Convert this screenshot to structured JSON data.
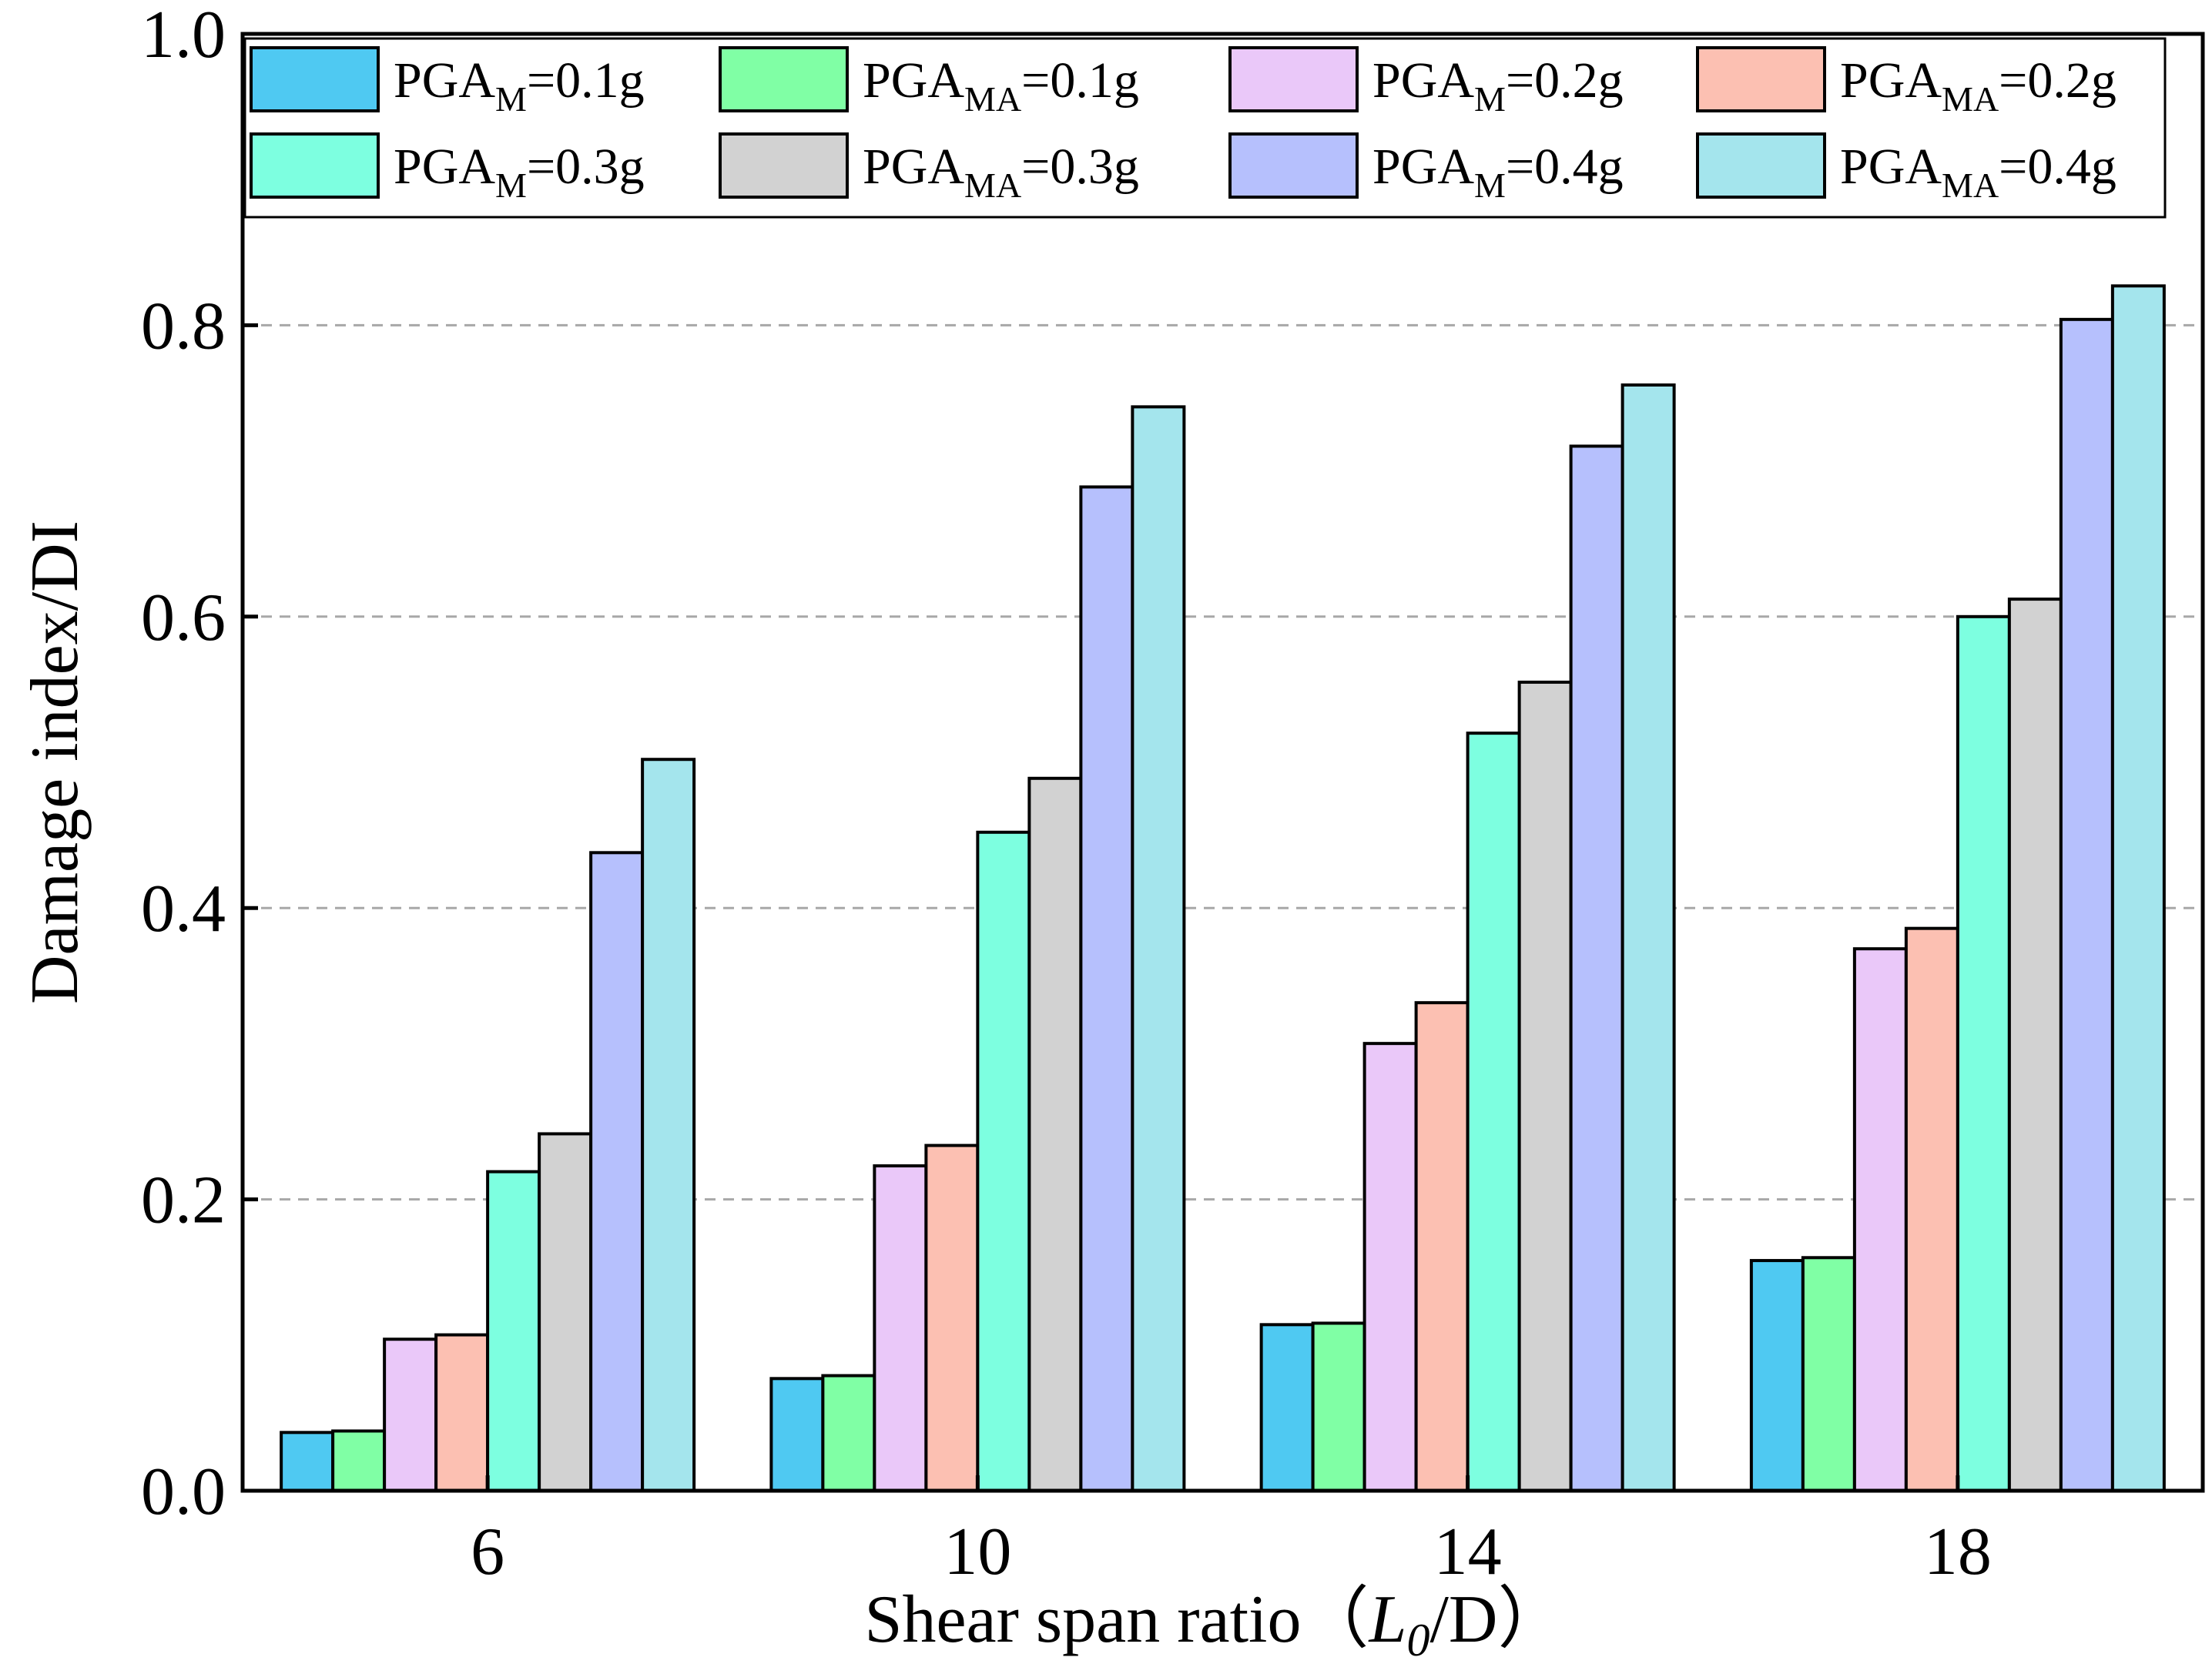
{
  "chart_data": {
    "type": "bar",
    "title": "",
    "xlabel": {
      "main": "Shear span ratio（",
      "italic": "L",
      "sub": "0",
      "tail": "/D）"
    },
    "ylabel": "Damage index/DI",
    "ylim": [
      0,
      1.0
    ],
    "yticks": [
      "0.0",
      "0.2",
      "0.4",
      "0.6",
      "0.8",
      "1.0"
    ],
    "ytick_values": [
      0,
      0.2,
      0.4,
      0.6,
      0.8,
      1.0
    ],
    "grid": "horizontal dashed",
    "legend_position": "top",
    "categories": [
      "6",
      "10",
      "14",
      "18"
    ],
    "series": [
      {
        "name": "PGA_M=0.1g",
        "base": "PGA",
        "sub": "M",
        "suffix": "=0.1g",
        "color": "#4fc9f2",
        "values": [
          0.04,
          0.077,
          0.114,
          0.158
        ]
      },
      {
        "name": "PGA_MA=0.1g",
        "base": "PGA",
        "sub": "MA",
        "suffix": "=0.1g",
        "color": "#80ffa5",
        "values": [
          0.041,
          0.079,
          0.115,
          0.16
        ]
      },
      {
        "name": "PGA_M=0.2g",
        "base": "PGA",
        "sub": "M",
        "suffix": "=0.2g",
        "color": "#eac8f9",
        "values": [
          0.104,
          0.223,
          0.307,
          0.372
        ]
      },
      {
        "name": "PGA_MA=0.2g",
        "base": "PGA",
        "sub": "MA",
        "suffix": "=0.2g",
        "color": "#fcc0b2",
        "values": [
          0.107,
          0.237,
          0.335,
          0.386
        ]
      },
      {
        "name": "PGA_M=0.3g",
        "base": "PGA",
        "sub": "M",
        "suffix": "=0.3g",
        "color": "#7dffe0",
        "values": [
          0.219,
          0.452,
          0.52,
          0.6
        ]
      },
      {
        "name": "PGA_MA=0.3g",
        "base": "PGA",
        "sub": "MA",
        "suffix": "=0.3g",
        "color": "#d2d2d2",
        "values": [
          0.245,
          0.489,
          0.555,
          0.612
        ]
      },
      {
        "name": "PGA_M=0.4g",
        "base": "PGA",
        "sub": "M",
        "suffix": "=0.4g",
        "color": "#b6c0fd",
        "values": [
          0.438,
          0.689,
          0.717,
          0.804
        ]
      },
      {
        "name": "PGA_MA=0.4g",
        "base": "PGA",
        "sub": "MA",
        "suffix": "=0.4g",
        "color": "#a4e5ed",
        "values": [
          0.502,
          0.744,
          0.759,
          0.827
        ]
      }
    ]
  }
}
